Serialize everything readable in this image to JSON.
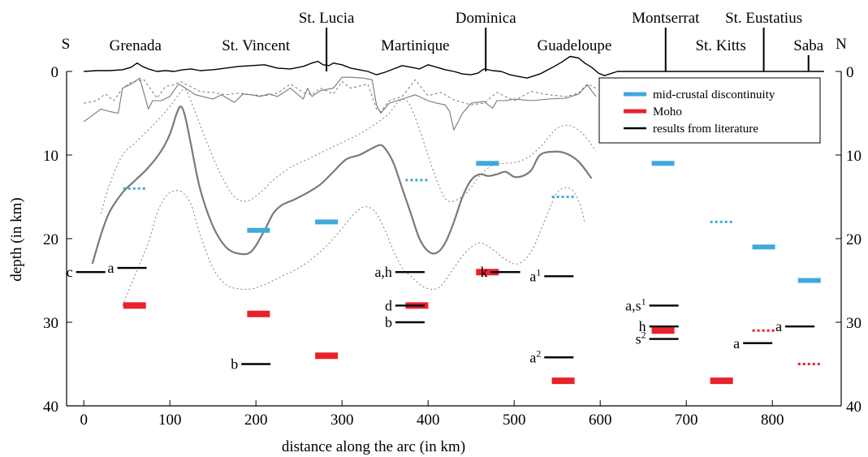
{
  "chart_data": {
    "type": "line",
    "title": "",
    "xlabel": "distance along the arc (in km)",
    "ylabel": "depth (in km)",
    "xlim": [
      -20,
      880
    ],
    "ylim": [
      40,
      0
    ],
    "x_ticks": [
      0,
      100,
      200,
      300,
      400,
      500,
      600,
      700,
      800
    ],
    "y_ticks": [
      0,
      10,
      20,
      30,
      40
    ],
    "direction_labels": {
      "left": "S",
      "right": "N"
    },
    "islands": [
      {
        "name": "Grenada",
        "x": 60,
        "marker": false
      },
      {
        "name": "St. Vincent",
        "x": 200,
        "marker": false
      },
      {
        "name": "St. Lucia",
        "x": 282,
        "marker": true
      },
      {
        "name": "Martinique",
        "x": 385,
        "marker": false
      },
      {
        "name": "Dominica",
        "x": 467,
        "marker": true
      },
      {
        "name": "Guadeloupe",
        "x": 570,
        "marker": false
      },
      {
        "name": "Montserrat",
        "x": 676,
        "marker": true
      },
      {
        "name": "St. Kitts",
        "x": 740,
        "marker": false
      },
      {
        "name": "St. Eustatius",
        "x": 790,
        "marker": true
      },
      {
        "name": "Saba",
        "x": 842,
        "marker": true
      }
    ],
    "legend": {
      "position": "top-right",
      "entries": [
        {
          "label": "mid-crustal discontinuity",
          "color": "#3fa9dc"
        },
        {
          "label": "Moho",
          "color": "#e8222b"
        },
        {
          "label": "results from literature",
          "color": "#000000"
        }
      ]
    },
    "colors": {
      "mid_crustal": "#3fa9dc",
      "moho": "#e8222b",
      "literature": "#000000",
      "profile": "#7a7a7a",
      "dotted": "#8a8a8a"
    },
    "series": [
      {
        "role": "topography",
        "x": [
          0,
          15,
          30,
          45,
          55,
          62,
          68,
          75,
          85,
          95,
          105,
          115,
          125,
          135,
          150,
          165,
          180,
          195,
          210,
          225,
          240,
          255,
          265,
          272,
          278,
          285,
          290,
          300,
          310,
          320,
          330,
          340,
          350,
          360,
          370,
          380,
          390,
          400,
          410,
          420,
          430,
          440,
          450,
          458,
          465,
          475,
          485,
          495,
          505,
          515,
          530,
          545,
          555,
          565,
          575,
          582,
          590,
          598,
          605,
          620,
          640,
          660,
          680,
          700,
          720,
          740,
          760,
          780,
          800,
          820,
          840,
          860
        ],
        "y": [
          0,
          -0.1,
          -0.1,
          -0.2,
          -0.5,
          -1.0,
          -0.6,
          -0.3,
          0,
          -0.1,
          0,
          -0.2,
          -0.3,
          -0.1,
          -0.2,
          -0.4,
          -0.6,
          -0.7,
          -0.8,
          -0.4,
          -0.3,
          -0.6,
          -1.0,
          -1.2,
          -0.8,
          -0.7,
          -1.0,
          -0.8,
          -0.4,
          -0.2,
          0,
          0.4,
          0.1,
          -0.3,
          -0.7,
          -0.5,
          -0.3,
          -0.8,
          -0.5,
          -0.2,
          0,
          0.3,
          0.4,
          0.2,
          -0.3,
          -0.1,
          0,
          0.4,
          0.6,
          0.8,
          0.3,
          -0.5,
          -1.1,
          -1.8,
          -1.6,
          -1.0,
          -0.5,
          0.2,
          0.5,
          0,
          0,
          0,
          0,
          0,
          0,
          0,
          0,
          0,
          0,
          0,
          0,
          0
        ]
      },
      {
        "role": "basement-dotted",
        "x": [
          0,
          15,
          25,
          35,
          45,
          55,
          70,
          85,
          95,
          105,
          112,
          120,
          135,
          150,
          165,
          180,
          195,
          210,
          225,
          240,
          255,
          265,
          275,
          290,
          300,
          310,
          330,
          340,
          345,
          355,
          370,
          385,
          400,
          415,
          430,
          450,
          465,
          480,
          500,
          520,
          540,
          560,
          575,
          585,
          595
        ],
        "y": [
          3.8,
          3.5,
          2.7,
          3.5,
          2.0,
          1.3,
          1.0,
          3.2,
          1.8,
          1.6,
          1.2,
          1.6,
          2.4,
          2.5,
          2.8,
          2.6,
          2.8,
          2.9,
          2.6,
          1.5,
          2.5,
          2.8,
          2.0,
          2.7,
          1.2,
          2.0,
          1.5,
          4.5,
          4.8,
          3.5,
          3.0,
          1.0,
          2.9,
          2.5,
          3.4,
          4.0,
          3.8,
          2.5,
          3.5,
          2.4,
          2.8,
          3.0,
          2.6,
          1.5,
          2.0
        ]
      },
      {
        "role": "basement-solid",
        "x": [
          0,
          20,
          30,
          40,
          45,
          55,
          65,
          75,
          80,
          90,
          100,
          110,
          115,
          130,
          150,
          160,
          175,
          185,
          195,
          205,
          215,
          225,
          240,
          255,
          260,
          265,
          275,
          290,
          300,
          310,
          325,
          335,
          340,
          345,
          355,
          370,
          385,
          400,
          410,
          420,
          425,
          430,
          440,
          450,
          465,
          475,
          480,
          490,
          500,
          520,
          540,
          560,
          575,
          585,
          595
        ],
        "y": [
          6.0,
          4.5,
          4.8,
          5.0,
          2.0,
          1.5,
          0.8,
          4.5,
          3.5,
          3.5,
          3.0,
          1.5,
          1.8,
          2.8,
          3.3,
          2.8,
          3.7,
          2.7,
          2.8,
          3.0,
          2.7,
          3.0,
          2.0,
          3.3,
          2.0,
          3.0,
          2.3,
          2.0,
          0.7,
          0.7,
          0.8,
          1.0,
          4.0,
          5.0,
          3.8,
          3.3,
          2.8,
          3.5,
          3.8,
          4.0,
          4.8,
          7.0,
          5.0,
          3.8,
          3.6,
          4.4,
          3.5,
          3.5,
          3.3,
          3.5,
          3.3,
          3.2,
          2.7,
          1.6,
          3.0
        ]
      },
      {
        "role": "mid-crustal-profile",
        "x": [
          10,
          20,
          30,
          45,
          60,
          75,
          90,
          100,
          108,
          113,
          118,
          125,
          135,
          150,
          165,
          180,
          195,
          210,
          220,
          230,
          245,
          260,
          275,
          290,
          305,
          320,
          335,
          345,
          352,
          360,
          370,
          380,
          390,
          400,
          410,
          420,
          430,
          440,
          450,
          460,
          470,
          480,
          490,
          500,
          510,
          520,
          530,
          545,
          560,
          575,
          590
        ],
        "y": [
          23.0,
          19.5,
          16.8,
          14.5,
          13.0,
          11.5,
          9.5,
          7.5,
          5.0,
          4.2,
          5.5,
          9.0,
          14.0,
          18.5,
          21.0,
          21.8,
          21.5,
          19.0,
          17.0,
          16.0,
          15.3,
          14.5,
          13.5,
          12.0,
          10.5,
          10.0,
          9.2,
          8.8,
          9.5,
          11.0,
          14.0,
          17.0,
          20.0,
          21.5,
          21.7,
          20.5,
          18.0,
          15.0,
          13.0,
          12.3,
          12.5,
          12.3,
          12.0,
          12.6,
          12.5,
          11.8,
          10.0,
          9.6,
          9.8,
          10.8,
          12.8
        ]
      },
      {
        "role": "profile-upper-bound-dotted",
        "x": [
          20,
          30,
          45,
          60,
          80,
          95,
          105,
          115,
          120,
          130,
          145,
          160,
          175,
          190,
          205,
          220,
          240,
          260,
          280,
          300,
          320,
          340,
          355,
          365,
          375,
          385,
          400,
          410,
          420,
          430,
          445,
          460,
          475,
          490,
          505,
          520,
          535,
          550,
          565,
          580,
          595
        ],
        "y": [
          17.0,
          13.5,
          10.0,
          8.5,
          6.5,
          4.8,
          3.5,
          2.2,
          2.5,
          5.0,
          9.0,
          12.5,
          15.0,
          15.5,
          14.5,
          13.0,
          11.5,
          10.5,
          9.5,
          8.5,
          7.5,
          6.2,
          5.0,
          3.7,
          3.5,
          5.5,
          10.0,
          13.0,
          15.2,
          15.5,
          14.5,
          12.5,
          11.2,
          11.0,
          10.8,
          10.0,
          8.5,
          6.8,
          6.5,
          7.5,
          9.5
        ]
      },
      {
        "role": "profile-lower-bound-dotted",
        "x": [
          45,
          55,
          65,
          75,
          85,
          95,
          105,
          115,
          125,
          135,
          150,
          165,
          180,
          195,
          210,
          230,
          250,
          270,
          290,
          310,
          320,
          330,
          340,
          350,
          360,
          370,
          380,
          395,
          410,
          420,
          430,
          445,
          460,
          475,
          490,
          505,
          520,
          535,
          550,
          565,
          575,
          582
        ],
        "y": [
          28.0,
          25.5,
          23.0,
          20.5,
          17.0,
          15.0,
          14.3,
          14.5,
          16.0,
          19.5,
          23.5,
          25.5,
          26.0,
          26.0,
          25.5,
          24.5,
          23.5,
          22.0,
          20.0,
          17.5,
          16.5,
          16.2,
          17.0,
          19.0,
          21.5,
          23.5,
          24.5,
          25.8,
          26.0,
          25.0,
          23.5,
          21.5,
          20.5,
          21.3,
          22.5,
          23.0,
          21.5,
          18.0,
          14.5,
          14.0,
          15.5,
          18.0
        ]
      }
    ],
    "mid_crustal_discontinuity": [
      {
        "x": 59,
        "y": 14.0,
        "style": "dotted"
      },
      {
        "x": 203,
        "y": 19.0,
        "style": "solid"
      },
      {
        "x": 282,
        "y": 18.0,
        "style": "solid"
      },
      {
        "x": 387,
        "y": 13.0,
        "style": "dotted"
      },
      {
        "x": 469,
        "y": 11.0,
        "style": "solid"
      },
      {
        "x": 557,
        "y": 15.0,
        "style": "dotted"
      },
      {
        "x": 673,
        "y": 11.0,
        "style": "solid"
      },
      {
        "x": 741,
        "y": 18.0,
        "style": "dotted"
      },
      {
        "x": 790,
        "y": 21.0,
        "style": "solid"
      },
      {
        "x": 843,
        "y": 25.0,
        "style": "solid"
      }
    ],
    "moho": [
      {
        "x": 59,
        "y": 28.0,
        "style": "solid"
      },
      {
        "x": 203,
        "y": 29.0,
        "style": "solid"
      },
      {
        "x": 282,
        "y": 34.0,
        "style": "solid"
      },
      {
        "x": 387,
        "y": 28.0,
        "style": "solid"
      },
      {
        "x": 469,
        "y": 24.0,
        "style": "solid"
      },
      {
        "x": 557,
        "y": 37.0,
        "style": "solid"
      },
      {
        "x": 673,
        "y": 31.0,
        "style": "solid"
      },
      {
        "x": 741,
        "y": 37.0,
        "style": "solid"
      },
      {
        "x": 790,
        "y": 31.0,
        "style": "dotted"
      },
      {
        "x": 843,
        "y": 35.0,
        "style": "dotted"
      }
    ],
    "literature_results": [
      {
        "x": 8,
        "y": 24.0,
        "label": "c"
      },
      {
        "x": 56,
        "y": 23.5,
        "label": "a"
      },
      {
        "x": 200,
        "y": 35.0,
        "label": "b"
      },
      {
        "x": 379,
        "y": 24.0,
        "label": "a,h"
      },
      {
        "x": 379,
        "y": 28.0,
        "label": "d"
      },
      {
        "x": 379,
        "y": 30.0,
        "label": "b"
      },
      {
        "x": 490,
        "y": 24.0,
        "label": "k"
      },
      {
        "x": 552,
        "y": 24.5,
        "label": "a¹"
      },
      {
        "x": 552,
        "y": 34.2,
        "label": "a²"
      },
      {
        "x": 674,
        "y": 28.0,
        "label": "a,s¹"
      },
      {
        "x": 674,
        "y": 30.5,
        "label": "h"
      },
      {
        "x": 674,
        "y": 32.0,
        "label": "s²"
      },
      {
        "x": 783,
        "y": 32.5,
        "label": "a"
      },
      {
        "x": 832,
        "y": 30.5,
        "label": "a"
      }
    ]
  }
}
